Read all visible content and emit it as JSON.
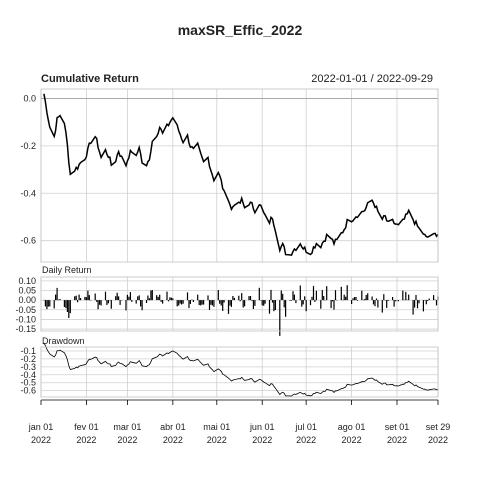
{
  "chart_data": {
    "type": "line",
    "title": "maxSR_Effic_2022",
    "date_range": "2022-01-01 / 2022-09-29",
    "x_ticks": [
      {
        "date": "2022-01-01",
        "line1": "jan 01",
        "line2": "2022"
      },
      {
        "date": "2022-02-01",
        "line1": "fev 01",
        "line2": "2022"
      },
      {
        "date": "2022-03-01",
        "line1": "mar 01",
        "line2": "2022"
      },
      {
        "date": "2022-04-01",
        "line1": "abr 01",
        "line2": "2022"
      },
      {
        "date": "2022-05-01",
        "line1": "mai 01",
        "line2": "2022"
      },
      {
        "date": "2022-06-01",
        "line1": "jun 01",
        "line2": "2022"
      },
      {
        "date": "2022-07-01",
        "line1": "jul 01",
        "line2": "2022"
      },
      {
        "date": "2022-08-01",
        "line1": "ago 01",
        "line2": "2022"
      },
      {
        "date": "2022-09-01",
        "line1": "set 01",
        "line2": "2022"
      },
      {
        "date": "2022-09-29",
        "line1": "set 29",
        "line2": "2022"
      }
    ],
    "panels": [
      {
        "name": "Cumulative Return",
        "type": "line",
        "yticks": [
          0.0,
          -0.2,
          -0.4,
          -0.6
        ],
        "ytick_labels": [
          "0.0",
          "-0.2",
          "-0.4",
          "-0.6"
        ],
        "ylim": [
          -0.69,
          0.04
        ],
        "zero_line": true,
        "series": [
          {
            "dates": [
              "2022-01-01",
              "2022-01-03",
              "2022-01-05",
              "2022-01-07",
              "2022-01-10",
              "2022-01-12",
              "2022-01-14",
              "2022-01-17",
              "2022-01-19",
              "2022-01-21",
              "2022-01-24",
              "2022-01-26",
              "2022-01-28",
              "2022-01-31",
              "2022-02-02",
              "2022-02-04",
              "2022-02-07",
              "2022-02-09",
              "2022-02-11",
              "2022-02-14",
              "2022-02-16",
              "2022-02-18",
              "2022-02-21",
              "2022-02-23",
              "2022-02-25",
              "2022-02-28",
              "2022-03-02",
              "2022-03-04",
              "2022-03-07",
              "2022-03-09",
              "2022-03-11",
              "2022-03-14",
              "2022-03-16",
              "2022-03-18",
              "2022-03-21",
              "2022-03-23",
              "2022-03-25",
              "2022-03-28",
              "2022-03-30",
              "2022-04-01",
              "2022-04-04",
              "2022-04-06",
              "2022-04-08",
              "2022-04-11",
              "2022-04-13",
              "2022-04-15",
              "2022-04-18",
              "2022-04-20",
              "2022-04-22",
              "2022-04-25",
              "2022-04-27",
              "2022-04-29",
              "2022-05-02",
              "2022-05-04",
              "2022-05-06",
              "2022-05-09",
              "2022-05-11",
              "2022-05-13",
              "2022-05-16",
              "2022-05-18",
              "2022-05-20",
              "2022-05-23",
              "2022-05-25",
              "2022-05-27",
              "2022-05-30",
              "2022-06-01",
              "2022-06-03",
              "2022-06-06",
              "2022-06-08",
              "2022-06-10",
              "2022-06-13",
              "2022-06-15",
              "2022-06-17",
              "2022-06-20",
              "2022-06-22",
              "2022-06-24",
              "2022-06-27",
              "2022-06-29",
              "2022-07-01",
              "2022-07-04",
              "2022-07-06",
              "2022-07-08",
              "2022-07-11",
              "2022-07-13",
              "2022-07-15",
              "2022-07-18",
              "2022-07-20",
              "2022-07-22",
              "2022-07-25",
              "2022-07-27",
              "2022-07-29",
              "2022-08-01",
              "2022-08-03",
              "2022-08-05",
              "2022-08-08",
              "2022-08-10",
              "2022-08-12",
              "2022-08-15",
              "2022-08-17",
              "2022-08-19",
              "2022-08-22",
              "2022-08-24",
              "2022-08-26",
              "2022-08-29",
              "2022-08-31",
              "2022-09-02",
              "2022-09-05",
              "2022-09-07",
              "2022-09-09",
              "2022-09-12",
              "2022-09-14",
              "2022-09-16",
              "2022-09-19",
              "2022-09-21",
              "2022-09-23",
              "2022-09-26",
              "2022-09-28",
              "2022-09-29"
            ],
            "values": [
              0.03,
              0.02,
              -0.05,
              -0.12,
              -0.16,
              -0.09,
              -0.07,
              -0.1,
              -0.2,
              -0.32,
              -0.3,
              -0.29,
              -0.27,
              -0.25,
              -0.22,
              -0.18,
              -0.16,
              -0.2,
              -0.25,
              -0.22,
              -0.24,
              -0.28,
              -0.26,
              -0.22,
              -0.25,
              -0.28,
              -0.24,
              -0.22,
              -0.25,
              -0.2,
              -0.27,
              -0.29,
              -0.25,
              -0.18,
              -0.15,
              -0.12,
              -0.15,
              -0.12,
              -0.1,
              -0.08,
              -0.12,
              -0.15,
              -0.18,
              -0.16,
              -0.2,
              -0.22,
              -0.2,
              -0.24,
              -0.27,
              -0.25,
              -0.3,
              -0.34,
              -0.31,
              -0.35,
              -0.4,
              -0.42,
              -0.47,
              -0.44,
              -0.45,
              -0.43,
              -0.46,
              -0.44,
              -0.45,
              -0.47,
              -0.44,
              -0.47,
              -0.5,
              -0.52,
              -0.5,
              -0.55,
              -0.63,
              -0.62,
              -0.65,
              -0.66,
              -0.64,
              -0.63,
              -0.61,
              -0.63,
              -0.64,
              -0.65,
              -0.63,
              -0.61,
              -0.62,
              -0.6,
              -0.58,
              -0.59,
              -0.61,
              -0.6,
              -0.57,
              -0.55,
              -0.52,
              -0.51,
              -0.5,
              -0.49,
              -0.48,
              -0.47,
              -0.45,
              -0.43,
              -0.45,
              -0.48,
              -0.51,
              -0.5,
              -0.53,
              -0.52,
              -0.53,
              -0.54,
              -0.52,
              -0.5,
              -0.48,
              -0.51,
              -0.53,
              -0.55,
              -0.57,
              -0.59,
              -0.58,
              -0.58,
              -0.57,
              -0.57
            ]
          }
        ]
      },
      {
        "name": "Daily Return",
        "type": "bar",
        "yticks": [
          0.1,
          0.05,
          0.0,
          -0.05,
          -0.1,
          -0.15
        ],
        "ytick_labels": [
          "0.10",
          "0.05",
          "0.00",
          "-0.05",
          "-0.10",
          "-0.15"
        ],
        "ylim": [
          -0.16,
          0.12
        ]
      },
      {
        "name": "Drawdown",
        "type": "line",
        "yticks": [
          -0.1,
          -0.2,
          -0.3,
          -0.4,
          -0.5,
          -0.6
        ],
        "ytick_labels": [
          "-0.1",
          "-0.2",
          "-0.3",
          "-0.4",
          "-0.5",
          "-0.6"
        ],
        "ylim": [
          -0.68,
          -0.05
        ]
      }
    ]
  }
}
